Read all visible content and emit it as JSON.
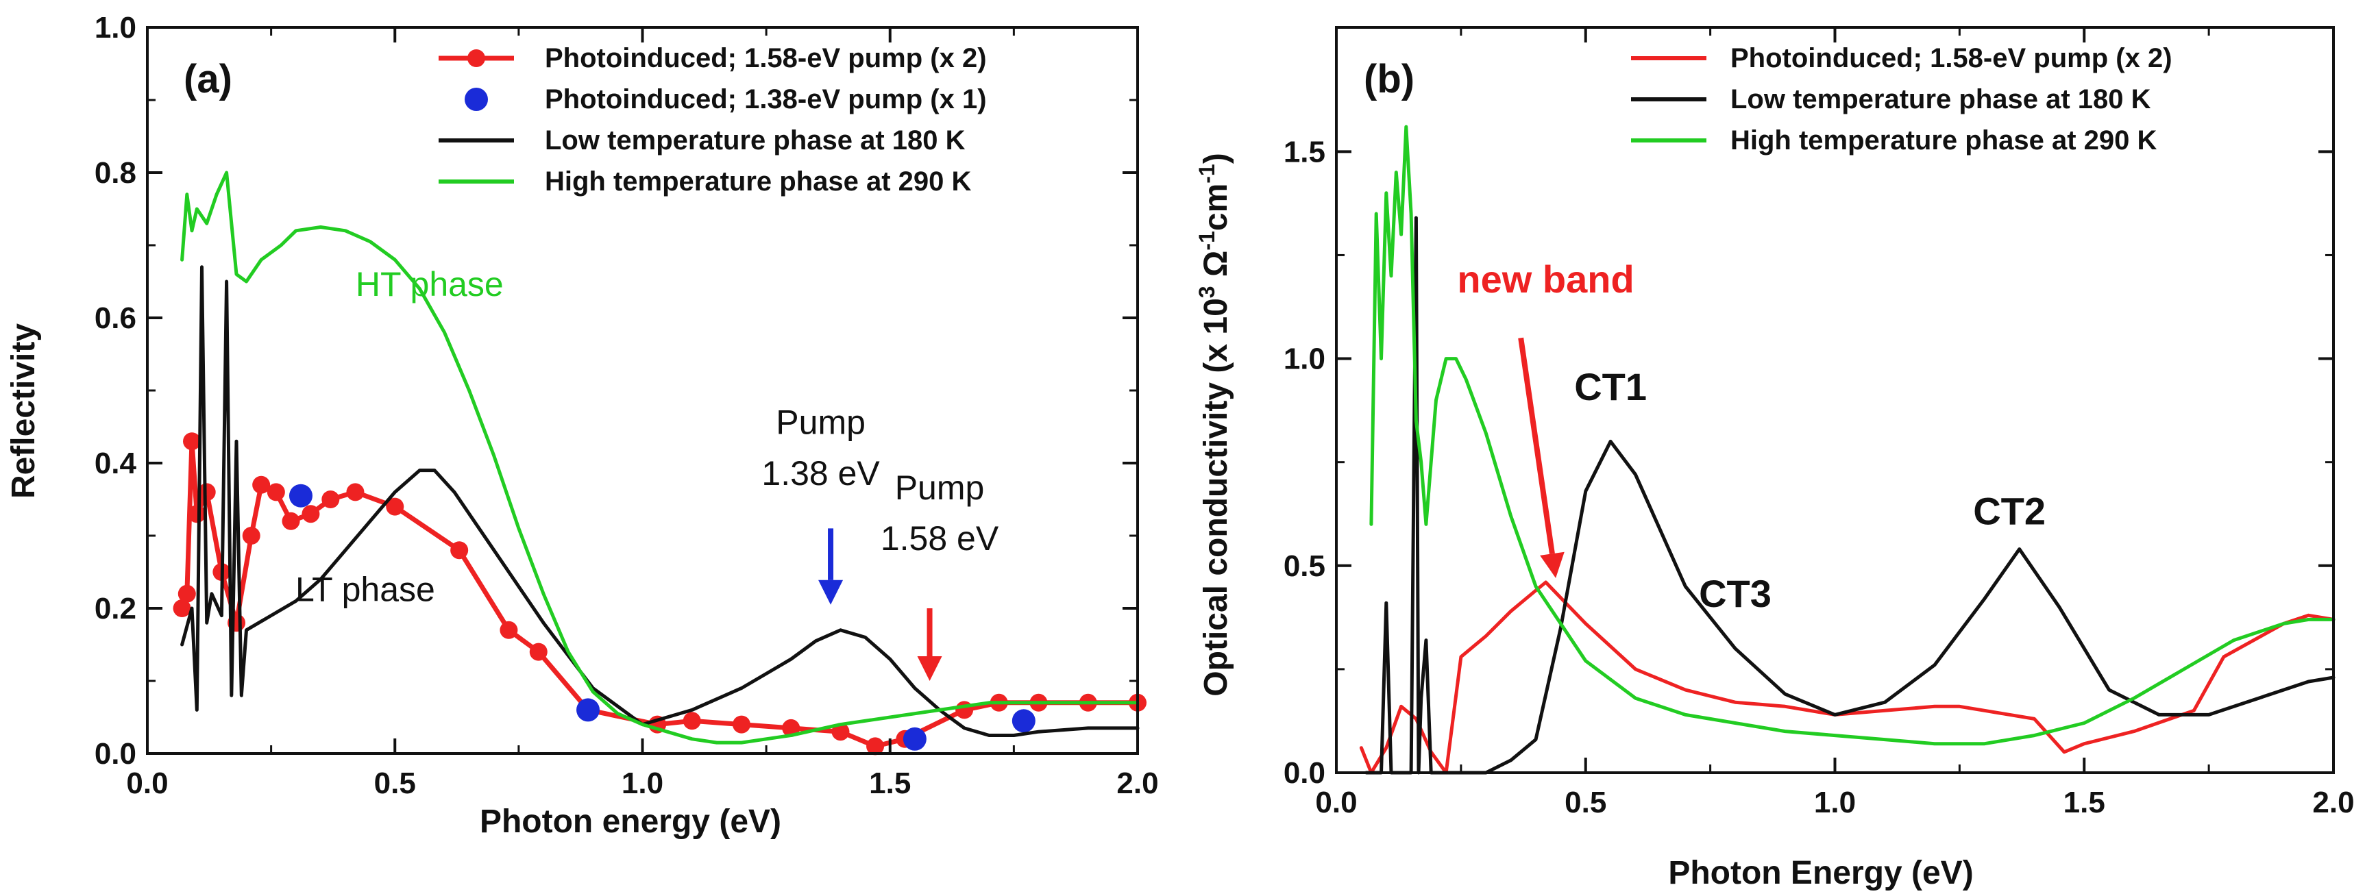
{
  "chart_data": [
    {
      "type": "line",
      "panel_label": "(a)",
      "xlabel": "Photon energy (eV)",
      "ylabel": "Reflectivity",
      "xlim": [
        0.0,
        2.0
      ],
      "ylim": [
        0.0,
        1.0
      ],
      "xticks": [
        "0.0",
        "0.5",
        "1.0",
        "1.5",
        "2.0"
      ],
      "yticks": [
        "0.0",
        "0.2",
        "0.4",
        "0.6",
        "0.8",
        "1.0"
      ],
      "legend_position": "top-right",
      "series": [
        {
          "name": "Photoinduced; 1.58-eV pump (x 2)",
          "color": "#ee2222",
          "style": "line-markers",
          "x": [
            0.07,
            0.08,
            0.09,
            0.1,
            0.12,
            0.15,
            0.18,
            0.21,
            0.23,
            0.26,
            0.29,
            0.33,
            0.37,
            0.42,
            0.5,
            0.63,
            0.73,
            0.79,
            0.89,
            1.03,
            1.1,
            1.2,
            1.3,
            1.4,
            1.47,
            1.53,
            1.65,
            1.72,
            1.8,
            1.9,
            2.0
          ],
          "y": [
            0.2,
            0.22,
            0.43,
            0.33,
            0.36,
            0.25,
            0.18,
            0.3,
            0.37,
            0.36,
            0.32,
            0.33,
            0.35,
            0.36,
            0.34,
            0.28,
            0.17,
            0.14,
            0.06,
            0.04,
            0.045,
            0.04,
            0.035,
            0.03,
            0.01,
            0.02,
            0.06,
            0.07,
            0.07,
            0.07,
            0.07
          ]
        },
        {
          "name": "Photoinduced; 1.38-eV pump (x 1)",
          "color": "#1a2bd8",
          "style": "markers",
          "x": [
            0.31,
            0.89,
            1.55,
            1.77
          ],
          "y": [
            0.355,
            0.06,
            0.02,
            0.045
          ]
        },
        {
          "name": "Low temperature phase at 180 K",
          "color": "#111111",
          "style": "line",
          "x": [
            0.07,
            0.09,
            0.1,
            0.11,
            0.12,
            0.13,
            0.15,
            0.16,
            0.17,
            0.18,
            0.19,
            0.2,
            0.25,
            0.3,
            0.35,
            0.4,
            0.45,
            0.5,
            0.55,
            0.58,
            0.62,
            0.7,
            0.8,
            0.9,
            1.0,
            1.05,
            1.1,
            1.2,
            1.3,
            1.35,
            1.4,
            1.45,
            1.5,
            1.55,
            1.6,
            1.65,
            1.7,
            1.75,
            1.8,
            1.9,
            2.0
          ],
          "y": [
            0.15,
            0.2,
            0.06,
            0.67,
            0.18,
            0.22,
            0.19,
            0.65,
            0.08,
            0.43,
            0.08,
            0.17,
            0.19,
            0.21,
            0.24,
            0.28,
            0.32,
            0.36,
            0.39,
            0.39,
            0.36,
            0.28,
            0.18,
            0.09,
            0.04,
            0.05,
            0.06,
            0.09,
            0.13,
            0.155,
            0.17,
            0.16,
            0.13,
            0.09,
            0.06,
            0.035,
            0.025,
            0.025,
            0.03,
            0.035,
            0.035
          ]
        },
        {
          "name": "High temperature phase at 290 K",
          "color": "#22cc22",
          "style": "line",
          "x": [
            0.07,
            0.08,
            0.09,
            0.1,
            0.12,
            0.14,
            0.16,
            0.18,
            0.2,
            0.23,
            0.27,
            0.3,
            0.35,
            0.4,
            0.45,
            0.5,
            0.55,
            0.6,
            0.65,
            0.7,
            0.75,
            0.8,
            0.85,
            0.9,
            0.95,
            1.0,
            1.05,
            1.1,
            1.15,
            1.2,
            1.3,
            1.4,
            1.5,
            1.6,
            1.7,
            1.8,
            1.9,
            2.0
          ],
          "y": [
            0.68,
            0.77,
            0.72,
            0.75,
            0.73,
            0.77,
            0.8,
            0.66,
            0.65,
            0.68,
            0.7,
            0.72,
            0.725,
            0.72,
            0.705,
            0.68,
            0.64,
            0.58,
            0.5,
            0.41,
            0.31,
            0.22,
            0.14,
            0.085,
            0.055,
            0.04,
            0.03,
            0.02,
            0.015,
            0.015,
            0.025,
            0.04,
            0.05,
            0.06,
            0.07,
            0.07,
            0.07,
            0.07
          ]
        }
      ],
      "annotations": [
        {
          "text": "HT phase",
          "x": 0.57,
          "y": 0.63,
          "color": "#22cc22"
        },
        {
          "text": "LT phase",
          "x": 0.44,
          "y": 0.21,
          "color": "#111111"
        },
        {
          "text": "Pump",
          "x": 1.36,
          "y": 0.44,
          "color": "#111111"
        },
        {
          "text": "1.38 eV",
          "x": 1.36,
          "y": 0.37,
          "color": "#111111"
        },
        {
          "text": "Pump",
          "x": 1.6,
          "y": 0.35,
          "color": "#111111"
        },
        {
          "text": "1.58 eV",
          "x": 1.6,
          "y": 0.28,
          "color": "#111111"
        }
      ],
      "arrows": [
        {
          "name": "pump-1.38-arrow",
          "color": "#1a2bd8",
          "from": [
            1.38,
            0.31
          ],
          "to": [
            1.38,
            0.205
          ]
        },
        {
          "name": "pump-1.58-arrow",
          "color": "#ee2222",
          "from": [
            1.58,
            0.2
          ],
          "to": [
            1.58,
            0.1
          ]
        }
      ]
    },
    {
      "type": "line",
      "panel_label": "(b)",
      "xlabel": "Photon Energy (eV)",
      "ylabel": "Optical conductivity (x 10^3 Ω^-1cm^-1)",
      "ylabel_parts": [
        "Optical conductivity (x 10",
        "3",
        " Ω",
        "-1",
        "cm",
        "-1",
        ")"
      ],
      "xlim": [
        0.0,
        2.0
      ],
      "ylim": [
        0.0,
        1.8
      ],
      "xticks": [
        "0.0",
        "0.5",
        "1.0",
        "1.5",
        "2.0"
      ],
      "yticks": [
        "0.0",
        "0.5",
        "1.0",
        "1.5"
      ],
      "legend_position": "top-right",
      "series": [
        {
          "name": "Photoinduced; 1.58-eV pump (x 2)",
          "color": "#ee2222",
          "style": "line",
          "x": [
            0.05,
            0.07,
            0.1,
            0.13,
            0.16,
            0.19,
            0.22,
            0.25,
            0.3,
            0.35,
            0.4,
            0.42,
            0.5,
            0.6,
            0.7,
            0.8,
            0.9,
            1.0,
            1.1,
            1.2,
            1.25,
            1.3,
            1.4,
            1.46,
            1.5,
            1.6,
            1.72,
            1.78,
            1.9,
            1.95,
            2.0
          ],
          "y": [
            0.06,
            0.0,
            0.06,
            0.16,
            0.13,
            0.05,
            0.0,
            0.28,
            0.33,
            0.39,
            0.44,
            0.46,
            0.36,
            0.25,
            0.2,
            0.17,
            0.16,
            0.14,
            0.15,
            0.16,
            0.16,
            0.15,
            0.13,
            0.05,
            0.07,
            0.1,
            0.15,
            0.28,
            0.36,
            0.38,
            0.37
          ]
        },
        {
          "name": "Low temperature phase at 180 K",
          "color": "#111111",
          "style": "line",
          "x": [
            0.06,
            0.09,
            0.1,
            0.11,
            0.13,
            0.15,
            0.16,
            0.165,
            0.17,
            0.18,
            0.19,
            0.3,
            0.35,
            0.4,
            0.45,
            0.5,
            0.55,
            0.6,
            0.7,
            0.8,
            0.9,
            1.0,
            1.1,
            1.2,
            1.3,
            1.37,
            1.45,
            1.55,
            1.65,
            1.75,
            1.85,
            1.95,
            2.0
          ],
          "y": [
            0.0,
            0.0,
            0.41,
            0.0,
            0.0,
            0.0,
            1.34,
            0.0,
            0.18,
            0.32,
            0.0,
            0.0,
            0.03,
            0.08,
            0.35,
            0.68,
            0.8,
            0.72,
            0.45,
            0.3,
            0.19,
            0.14,
            0.17,
            0.26,
            0.42,
            0.54,
            0.4,
            0.2,
            0.14,
            0.14,
            0.18,
            0.22,
            0.23
          ]
        },
        {
          "name": "High temperature phase at 290 K",
          "color": "#22cc22",
          "style": "line",
          "x": [
            0.07,
            0.08,
            0.09,
            0.1,
            0.11,
            0.12,
            0.13,
            0.14,
            0.15,
            0.16,
            0.17,
            0.18,
            0.2,
            0.22,
            0.24,
            0.26,
            0.3,
            0.35,
            0.4,
            0.5,
            0.6,
            0.7,
            0.8,
            0.9,
            1.0,
            1.1,
            1.2,
            1.3,
            1.4,
            1.5,
            1.6,
            1.7,
            1.8,
            1.9,
            1.95,
            2.0
          ],
          "y": [
            0.6,
            1.35,
            1.0,
            1.4,
            1.2,
            1.45,
            1.3,
            1.56,
            1.35,
            0.85,
            0.75,
            0.6,
            0.9,
            1.0,
            1.0,
            0.95,
            0.82,
            0.62,
            0.45,
            0.27,
            0.18,
            0.14,
            0.12,
            0.1,
            0.09,
            0.08,
            0.07,
            0.07,
            0.09,
            0.12,
            0.18,
            0.25,
            0.32,
            0.36,
            0.37,
            0.37
          ]
        }
      ],
      "annotations": [
        {
          "text": "new band",
          "x": 0.42,
          "y": 1.16,
          "color": "#ee2222",
          "size": "large"
        },
        {
          "text": "CT1",
          "x": 0.55,
          "y": 0.9,
          "color": "#111111",
          "size": "large"
        },
        {
          "text": "CT3",
          "x": 0.8,
          "y": 0.4,
          "color": "#111111",
          "size": "large"
        },
        {
          "text": "CT2",
          "x": 1.35,
          "y": 0.6,
          "color": "#111111",
          "size": "large"
        }
      ],
      "arrows": [
        {
          "name": "new-band-arrow",
          "color": "#ee2222",
          "from": [
            0.37,
            1.05
          ],
          "to": [
            0.44,
            0.47
          ]
        }
      ]
    }
  ]
}
